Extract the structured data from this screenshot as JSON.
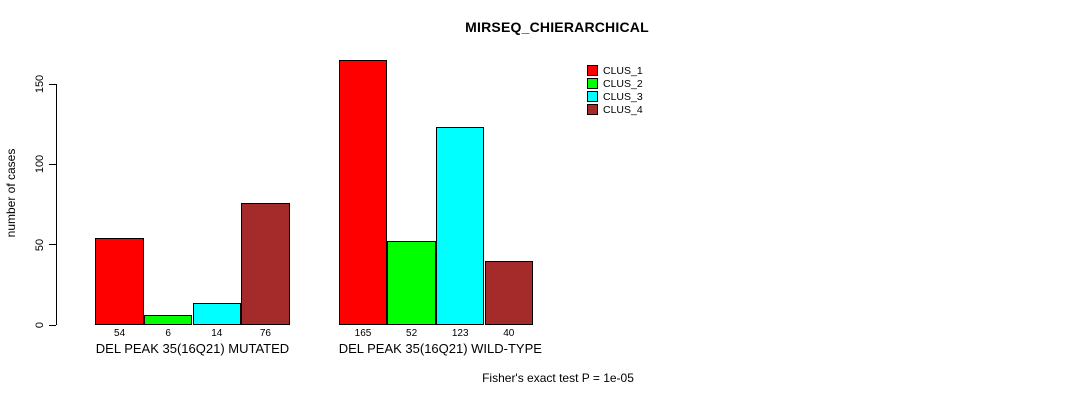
{
  "chart_data": {
    "type": "bar",
    "title": "MIRSEQ_CHIERARCHICAL",
    "ylabel": "number of cases",
    "xlabel": "",
    "ylim": [
      0,
      165
    ],
    "y_ticks": [
      0,
      50,
      100,
      150
    ],
    "grid": false,
    "legend_position": "top-right",
    "categories": [
      "DEL PEAK 35(16Q21) MUTATED",
      "DEL PEAK 35(16Q21) WILD-TYPE"
    ],
    "series": [
      {
        "name": "CLUS_1",
        "color": "#FF0000",
        "values": [
          54,
          165
        ]
      },
      {
        "name": "CLUS_2",
        "color": "#00FF00",
        "values": [
          6,
          52
        ]
      },
      {
        "name": "CLUS_3",
        "color": "#00FFFF",
        "values": [
          14,
          123
        ]
      },
      {
        "name": "CLUS_4",
        "color": "#A52A2A",
        "values": [
          76,
          40
        ]
      }
    ],
    "bar_value_labels": [
      [
        54,
        6,
        14,
        76
      ],
      [
        165,
        52,
        123,
        40
      ]
    ],
    "annotation": "Fisher's exact test P = 1e-05"
  }
}
